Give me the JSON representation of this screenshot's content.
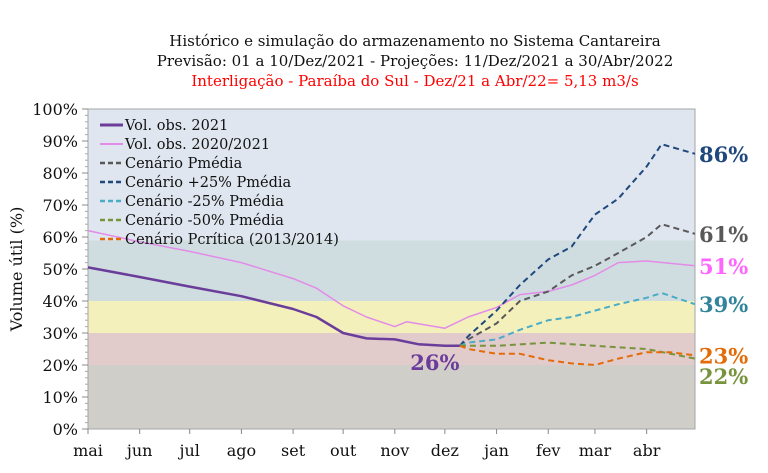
{
  "chart_data": {
    "type": "line",
    "title": [
      "Histórico e simulação do armazenamento no Sistema Cantareira",
      "Previsão: 01 a 10/Dez/2021 - Projeções: 11/Dez/2021 a 30/Abr/2022"
    ],
    "subtitle": "Interligação - Paraíba do Sul - Dez/21 a Abr/22= 5,13 m3/s",
    "subtitle_color": "#ff0000",
    "ylabel": "Volume útil (%)",
    "xlabel": "",
    "ylim": [
      0,
      100
    ],
    "xlim": [
      "2021-05-01",
      "2022-04-30"
    ],
    "y_ticks": [
      "0%",
      "10%",
      "20%",
      "30%",
      "40%",
      "50%",
      "60%",
      "70%",
      "80%",
      "90%",
      "100%"
    ],
    "x_ticks": [
      {
        "date": "2021-05-01",
        "label": "mai"
      },
      {
        "date": "2021-06-01",
        "label": "jun"
      },
      {
        "date": "2021-07-01",
        "label": "jul"
      },
      {
        "date": "2021-08-01",
        "label": "ago"
      },
      {
        "date": "2021-09-01",
        "label": "set"
      },
      {
        "date": "2021-10-01",
        "label": "out"
      },
      {
        "date": "2021-11-01",
        "label": "nov"
      },
      {
        "date": "2021-12-01",
        "label": "dez"
      },
      {
        "date": "2022-01-01",
        "label": "jan"
      },
      {
        "date": "2022-02-01",
        "label": "fev"
      },
      {
        "date": "2022-03-01",
        "label": "mar"
      },
      {
        "date": "2022-04-01",
        "label": "abr"
      }
    ],
    "grid": false,
    "legend_placement": "top-left",
    "bands": [
      {
        "from": 0,
        "to": 20,
        "color": "#d0cec9"
      },
      {
        "from": 20,
        "to": 30,
        "color": "#e2cbcb"
      },
      {
        "from": 30,
        "to": 40,
        "color": "#f3f0bc"
      },
      {
        "from": 40,
        "to": 59,
        "color": "#cfdde0"
      },
      {
        "from": 59,
        "to": 100,
        "color": "#dfe6ef"
      }
    ],
    "series": [
      {
        "name": "Vol. obs. 2021",
        "color": "#6a3d9a",
        "dash": false,
        "width": 2.5,
        "points": [
          [
            "2021-05-01",
            50.5
          ],
          [
            "2021-06-01",
            47.5
          ],
          [
            "2021-07-01",
            44.5
          ],
          [
            "2021-08-01",
            41.5
          ],
          [
            "2021-09-01",
            37.5
          ],
          [
            "2021-09-15",
            35
          ],
          [
            "2021-10-01",
            30
          ],
          [
            "2021-10-15",
            28.3
          ],
          [
            "2021-11-01",
            28
          ],
          [
            "2021-11-15",
            26.5
          ],
          [
            "2021-12-01",
            26
          ],
          [
            "2021-12-10",
            26
          ]
        ]
      },
      {
        "name": "Vol. obs. 2020/2021",
        "color": "#e28be8",
        "dash": false,
        "width": 1.5,
        "points": [
          [
            "2021-05-01",
            62
          ],
          [
            "2021-06-01",
            58.5
          ],
          [
            "2021-07-01",
            55.5
          ],
          [
            "2021-08-01",
            52
          ],
          [
            "2021-09-01",
            47
          ],
          [
            "2021-09-15",
            44
          ],
          [
            "2021-10-01",
            38.5
          ],
          [
            "2021-10-15",
            35
          ],
          [
            "2021-11-01",
            32
          ],
          [
            "2021-11-08",
            33.5
          ],
          [
            "2021-12-01",
            31.5
          ],
          [
            "2021-12-15",
            35
          ],
          [
            "2022-01-01",
            38
          ],
          [
            "2022-01-15",
            42
          ],
          [
            "2022-02-01",
            43
          ],
          [
            "2022-02-15",
            45
          ],
          [
            "2022-03-01",
            48
          ],
          [
            "2022-03-15",
            52
          ],
          [
            "2022-04-01",
            52.5
          ],
          [
            "2022-04-30",
            51
          ]
        ]
      },
      {
        "name": "Cenário Pmédia",
        "color": "#595959",
        "dash": true,
        "width": 2,
        "points": [
          [
            "2021-12-10",
            26
          ],
          [
            "2021-12-15",
            28
          ],
          [
            "2022-01-01",
            33
          ],
          [
            "2022-01-15",
            40
          ],
          [
            "2022-02-01",
            43
          ],
          [
            "2022-02-15",
            48
          ],
          [
            "2022-03-01",
            51
          ],
          [
            "2022-03-15",
            55
          ],
          [
            "2022-04-01",
            60
          ],
          [
            "2022-04-10",
            64
          ],
          [
            "2022-04-30",
            61
          ]
        ]
      },
      {
        "name": "Cenário +25% Pmédia",
        "color": "#1f497d",
        "dash": true,
        "width": 2,
        "points": [
          [
            "2021-12-10",
            26
          ],
          [
            "2021-12-15",
            29
          ],
          [
            "2022-01-01",
            37
          ],
          [
            "2022-01-15",
            45
          ],
          [
            "2022-02-01",
            53
          ],
          [
            "2022-02-15",
            57
          ],
          [
            "2022-03-01",
            67
          ],
          [
            "2022-03-15",
            72
          ],
          [
            "2022-04-01",
            82
          ],
          [
            "2022-04-10",
            89
          ],
          [
            "2022-04-30",
            86
          ]
        ]
      },
      {
        "name": "Cenário -25% Pmédia",
        "color": "#4bacc6",
        "dash": true,
        "width": 2,
        "points": [
          [
            "2021-12-10",
            26
          ],
          [
            "2021-12-15",
            27
          ],
          [
            "2022-01-01",
            28
          ],
          [
            "2022-01-15",
            31
          ],
          [
            "2022-02-01",
            34
          ],
          [
            "2022-02-15",
            35
          ],
          [
            "2022-03-01",
            37
          ],
          [
            "2022-03-15",
            39
          ],
          [
            "2022-04-01",
            41
          ],
          [
            "2022-04-10",
            42.5
          ],
          [
            "2022-04-30",
            39
          ]
        ]
      },
      {
        "name": "Cenário -50% Pmédia",
        "color": "#77933c",
        "dash": true,
        "width": 2,
        "points": [
          [
            "2021-12-10",
            26
          ],
          [
            "2022-01-01",
            26
          ],
          [
            "2022-02-01",
            27
          ],
          [
            "2022-03-01",
            26
          ],
          [
            "2022-04-01",
            25
          ],
          [
            "2022-04-30",
            22
          ]
        ]
      },
      {
        "name": "Cenário Pcrítica (2013/2014)",
        "color": "#e36c09",
        "dash": true,
        "width": 2,
        "points": [
          [
            "2021-12-10",
            26
          ],
          [
            "2021-12-15",
            25
          ],
          [
            "2022-01-01",
            23.5
          ],
          [
            "2022-01-15",
            23.5
          ],
          [
            "2022-02-01",
            21.5
          ],
          [
            "2022-02-15",
            20.5
          ],
          [
            "2022-03-01",
            20
          ],
          [
            "2022-03-15",
            22
          ],
          [
            "2022-04-01",
            24
          ],
          [
            "2022-04-15",
            24
          ],
          [
            "2022-04-30",
            23
          ]
        ]
      }
    ],
    "annotations": [
      {
        "text": "26%",
        "color": "#6a3d9a",
        "date": "2021-11-25",
        "y": 21
      },
      {
        "text": "86%",
        "color": "#1f497d",
        "y": 86
      },
      {
        "text": "61%",
        "color": "#595959",
        "y": 61
      },
      {
        "text": "51%",
        "color": "#ff66ff",
        "y": 51
      },
      {
        "text": "39%",
        "color": "#31849b",
        "y": 39
      },
      {
        "text": "23%",
        "color": "#e36c09",
        "y": 23
      },
      {
        "text": "22%",
        "color": "#77933c",
        "y": 16.5
      }
    ]
  }
}
